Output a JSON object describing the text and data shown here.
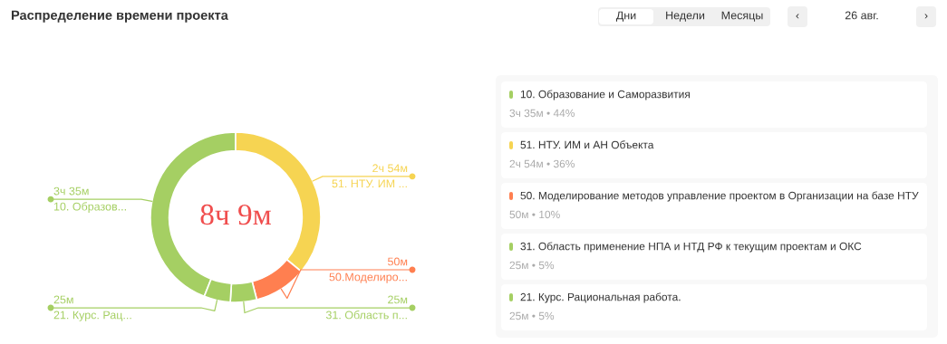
{
  "chart_data": {
    "type": "donut",
    "title": "Распределение времени проекта",
    "categories": [
      "10. Образование и Саморазвития",
      "51. НТУ. ИМ и АН Объекта",
      "50. Моделирование методов управление проектом в Организации на базе НТУ",
      "31. Область применение НПА и НТД РФ к текущим проектам и ОКС",
      "21. Курс. Рациональная работа."
    ],
    "values": [
      44,
      36,
      10,
      5,
      5
    ],
    "colors": [
      "#a5cf63",
      "#f6d452",
      "#ff7f50",
      "#a5cf63",
      "#a5cf63"
    ],
    "legend": "right",
    "annotations": [
      "8ч 9м",
      "Дни",
      "Недели",
      "Месяцы",
      "‹",
      "26 авг.",
      "›",
      {
        "text": "3ч 35м",
        "x": "10. Образование и Саморазвития"
      },
      {
        "text": "2ч 54м",
        "x": "51. НТУ. ИМ и АН Объекта"
      },
      {
        "text": "50м",
        "x": "50. Моделирование методов управление проектом в Организации на базе НТУ"
      },
      {
        "text": "25м",
        "x": "31. Область применение НПА и НТД РФ к текущим проектам и ОКС"
      },
      {
        "text": "25м",
        "x": "21. Курс. Рациональная работа."
      },
      {
        "text": "10. Образов...",
        "x": "10. Образование и Саморазвития"
      },
      {
        "text": "51. НТУ. ИМ ...",
        "x": "51. НТУ. ИМ и АН Объекта"
      },
      {
        "text": "50.Моделиро...",
        "x": "50. Моделирование методов управление проектом в Организации на базе НТУ"
      },
      {
        "text": "31. Область п...",
        "x": "31. Область применение НПА и НТД РФ к текущим проектам и ОКС"
      },
      {
        "text": "21. Курс. Рац...",
        "x": "21. Курс. Рациональная работа."
      },
      {
        "text": "3ч 35м • 44%",
        "x": "10. Образование и Саморазвития"
      },
      {
        "text": "2ч 54м • 36%",
        "x": "51. НТУ. ИМ и АН Объекта"
      },
      {
        "text": "50м • 10%",
        "x": "50. Моделирование методов управление проектом в Организации на базе НТУ"
      },
      {
        "text": "25м • 5%",
        "x": "31. Область применение НПА и НТД РФ к текущим проектам и ОКС"
      },
      {
        "text": "25м • 5%",
        "x": "21. Курс. Рациональная работа."
      }
    ]
  }
}
